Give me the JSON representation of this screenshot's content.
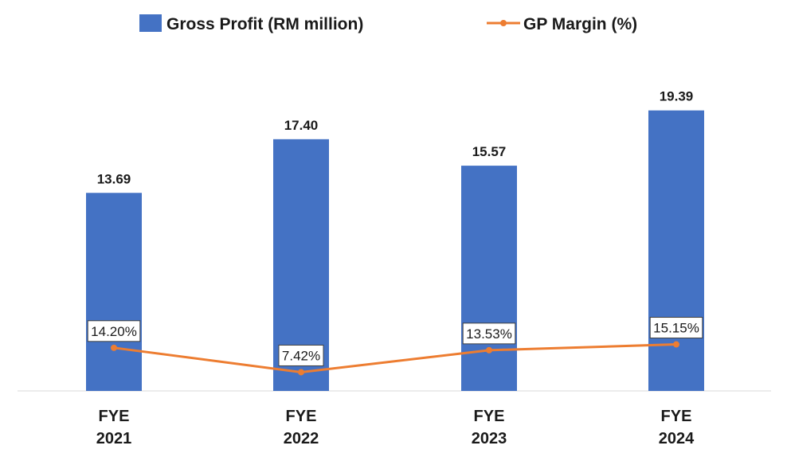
{
  "chart_data": {
    "type": "bar",
    "categories": [
      [
        "FYE",
        "2021"
      ],
      [
        "FYE",
        "2022"
      ],
      [
        "FYE",
        "2023"
      ],
      [
        "FYE",
        "2024"
      ]
    ],
    "series": [
      {
        "name": "Gross Profit (RM million)",
        "kind": "bar",
        "color": "#4472C4",
        "values": [
          13.69,
          17.4,
          15.57,
          19.39
        ],
        "labels": [
          "13.69",
          "17.40",
          "15.57",
          "19.39"
        ]
      },
      {
        "name": "GP Margin (%)",
        "kind": "line",
        "color": "#ED7D31",
        "values": [
          14.2,
          7.42,
          13.53,
          15.15
        ],
        "labels": [
          "14.20%",
          "7.42%",
          "13.53%",
          "15.15%"
        ]
      }
    ],
    "title": "",
    "xlabel": "",
    "ylabel": "",
    "bar_axis_range": [
      0,
      20
    ],
    "line_axis_range": [
      0,
      80
    ],
    "grid": false,
    "legend_position": "top"
  }
}
